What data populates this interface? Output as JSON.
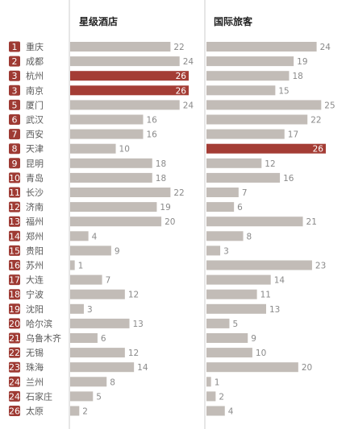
{
  "chart_data": {
    "type": "bar",
    "categories": [
      "重庆",
      "成都",
      "杭州",
      "南京",
      "厦门",
      "武汉",
      "西安",
      "天津",
      "昆明",
      "青岛",
      "长沙",
      "济南",
      "福州",
      "郑州",
      "贵阳",
      "苏州",
      "大连",
      "宁波",
      "沈阳",
      "哈尔滨",
      "乌鲁木齐",
      "无锡",
      "珠海",
      "兰州",
      "石家庄",
      "太原"
    ],
    "ranks": [
      "1",
      "2",
      "3",
      "3",
      "5",
      "6",
      "7",
      "8",
      "9",
      "10",
      "11",
      "12",
      "13",
      "14",
      "15",
      "16",
      "17",
      "18",
      "19",
      "20",
      "21",
      "22",
      "23",
      "24",
      "24",
      "26"
    ],
    "series": [
      {
        "name": "星级酒店",
        "values": [
          22,
          24,
          26,
          26,
          24,
          16,
          16,
          10,
          18,
          18,
          22,
          19,
          20,
          4,
          9,
          1,
          7,
          12,
          3,
          13,
          6,
          12,
          14,
          8,
          5,
          2
        ],
        "highlight": [
          2,
          3
        ]
      },
      {
        "name": "国际旅客",
        "values": [
          24,
          19,
          18,
          15,
          25,
          22,
          17,
          26,
          12,
          16,
          7,
          6,
          21,
          8,
          3,
          23,
          14,
          11,
          13,
          5,
          9,
          10,
          20,
          1,
          2,
          4
        ],
        "highlight": [
          7
        ]
      }
    ],
    "colors": {
      "bar": "#c2bcb7",
      "highlight": "#a43d35",
      "rank_badge": "#9e3a33",
      "text": "#5a5a5a",
      "value_text": "#8a8a8a",
      "highlight_value_text": "#ffffff",
      "divider": "#cccccc"
    },
    "xlim": [
      0,
      26
    ],
    "grid": false,
    "legend": "none"
  }
}
